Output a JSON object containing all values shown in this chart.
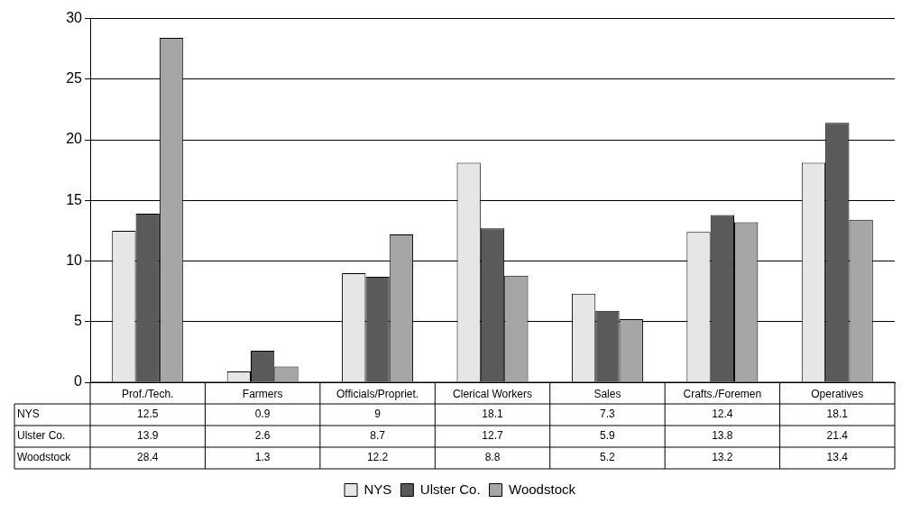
{
  "chart_data": {
    "type": "bar",
    "categories": [
      "Prof./Tech.",
      "Farmers",
      "Officials/Propriet.",
      "Clerical Workers",
      "Sales",
      "Crafts./Foremen",
      "Operatives"
    ],
    "series": [
      {
        "name": "NYS",
        "color": "#e6e6e6",
        "values": [
          12.5,
          0.9,
          9,
          18.1,
          7.3,
          12.4,
          18.1
        ]
      },
      {
        "name": "Ulster Co.",
        "color": "#5a5a5a",
        "values": [
          13.9,
          2.6,
          8.7,
          12.7,
          5.9,
          13.8,
          21.4
        ]
      },
      {
        "name": "Woodstock",
        "color": "#a6a6a6",
        "values": [
          28.4,
          1.3,
          12.2,
          8.8,
          5.2,
          13.2,
          13.4
        ]
      }
    ],
    "ylim": [
      0,
      30
    ],
    "yticks": [
      0,
      5,
      10,
      15,
      20,
      25,
      30
    ],
    "grid": "y",
    "legend": "bottom",
    "data_labels": true
  }
}
